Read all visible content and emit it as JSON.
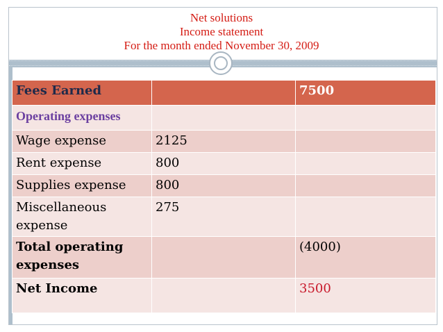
{
  "title": {
    "line1": "Net solutions",
    "line2": "Income statement",
    "line3": "For the month ended November 30, 2009"
  },
  "statement": {
    "header": {
      "label": "Fees Earned",
      "col2": "",
      "col3": "7500"
    },
    "rows": [
      {
        "label": "Operating expenses",
        "col2": "",
        "col3": ""
      },
      {
        "label": "Wage expense",
        "col2": "2125",
        "col3": ""
      },
      {
        "label": "Rent expense",
        "col2": "800",
        "col3": ""
      },
      {
        "label": "Supplies expense",
        "col2": "800",
        "col3": ""
      },
      {
        "label": "Miscellaneous expense",
        "col2": "275",
        "col3": ""
      },
      {
        "label": "Total operating expenses",
        "col2": "",
        "col3": "(4000)"
      },
      {
        "label": "Net Income",
        "col2": "",
        "col3": "3500"
      }
    ]
  },
  "colors": {
    "title": "#d41c14",
    "header_bg": "#d4654d",
    "row_light": "#f5e5e3",
    "row_dark": "#edcfcb",
    "operating_expenses_text": "#6b3fa0",
    "net_income_value": "#c8182a"
  }
}
